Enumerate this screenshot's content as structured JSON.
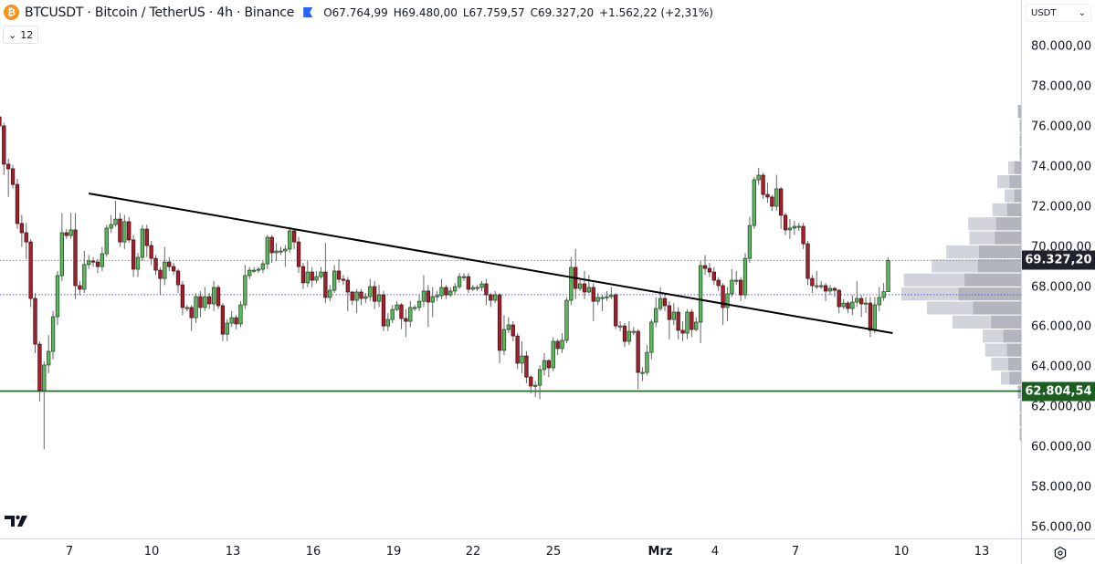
{
  "header": {
    "symbol_title": "BTCUSDT · Bitcoin / TetherUS · 4h · Binance",
    "ohlc": [
      {
        "label": "O",
        "value": "67.764,99"
      },
      {
        "label": "H",
        "value": "69.480,00"
      },
      {
        "label": "L",
        "value": "67.759,57"
      },
      {
        "label": "C",
        "value": "69.327,20"
      }
    ],
    "change": "+1.562,22 (+2,31%)",
    "icons": {
      "symbol": "bitcoin-icon",
      "flag": "flag-icon"
    }
  },
  "indicators_toggle": {
    "icon": "chevron-down-icon",
    "count": "12"
  },
  "currency_selector": {
    "value": "USDT",
    "icon": "chevron-down-icon"
  },
  "price_axis": {
    "ticks": [
      "80.000,00",
      "78.000,00",
      "76.000,00",
      "74.000,00",
      "72.000,00",
      "70.000,00",
      "68.000,00",
      "66.000,00",
      "64.000,00",
      "62.000,00",
      "60.000,00",
      "58.000,00",
      "56.000,00"
    ],
    "current_price_label": "69.327,20",
    "support_label": "62.804,54"
  },
  "time_axis": {
    "ticks": [
      "7",
      "10",
      "13",
      "16",
      "19",
      "22",
      "25",
      "Mrz",
      "4",
      "7",
      "10",
      "13"
    ]
  },
  "colors": {
    "up": "#5cb85c",
    "down": "#a3202c",
    "support_line": "#1b5e20",
    "current_price_bg": "#1e222d",
    "poc_line": "#5b5bd6",
    "trendline": "#000000"
  },
  "chart_data": {
    "type": "candlestick",
    "symbol": "BTCUSDT",
    "interval": "4h",
    "ylim": [
      55500,
      81000
    ],
    "y_tick_values": [
      80000,
      78000,
      76000,
      74000,
      72000,
      70000,
      68000,
      66000,
      64000,
      62000,
      60000,
      58000,
      56000
    ],
    "first_open": 76490,
    "close": [
      76040,
      74130,
      73900,
      73120,
      71170,
      70710,
      70250,
      67430,
      65150,
      62830,
      64110,
      64790,
      66520,
      68570,
      70710,
      70570,
      70850,
      68070,
      67890,
      69120,
      69300,
      69250,
      69020,
      69660,
      70940,
      71120,
      71390,
      70250,
      71260,
      70350,
      68890,
      69480,
      70890,
      70070,
      69430,
      68840,
      68430,
      69250,
      69020,
      68800,
      68110,
      66980,
      66980,
      66470,
      67520,
      66980,
      67520,
      67160,
      67980,
      67070,
      65650,
      66200,
      66470,
      66160,
      67110,
      68570,
      68840,
      68840,
      68890,
      69160,
      70480,
      69710,
      69800,
      69800,
      69890,
      70800,
      70250,
      69020,
      68210,
      68750,
      68340,
      68520,
      68750,
      67480,
      67840,
      68800,
      68390,
      68340,
      67750,
      67340,
      67750,
      67430,
      67520,
      68020,
      67290,
      67610,
      66060,
      66380,
      66880,
      67110,
      66430,
      66290,
      66980,
      66980,
      67290,
      67800,
      67250,
      67520,
      67570,
      67980,
      67610,
      67800,
      68020,
      68520,
      68520,
      67890,
      67980,
      67980,
      68160,
      67610,
      67340,
      67610,
      64840,
      65880,
      66110,
      65560,
      64200,
      64560,
      63510,
      63060,
      63100,
      63880,
      64330,
      63970,
      65290,
      64930,
      65340,
      67340,
      68980,
      67930,
      68160,
      67750,
      67980,
      67290,
      67480,
      67480,
      67520,
      67610,
      66060,
      66060,
      65290,
      65790,
      65790,
      63740,
      63740,
      64740,
      66250,
      66930,
      67430,
      67070,
      66380,
      66750,
      65840,
      65700,
      66750,
      65880,
      66250,
      69070,
      68930,
      68750,
      68340,
      68070,
      66980,
      67660,
      68340,
      68340,
      67610,
      69430,
      71070,
      73350,
      73580,
      72620,
      72490,
      72030,
      72900,
      71580,
      70850,
      70940,
      71030,
      71030,
      70160,
      68430,
      68070,
      68070,
      68070,
      67800,
      67930,
      67840,
      67020,
      67200,
      66930,
      67250,
      67430,
      67160,
      67200,
      65840,
      67110,
      67480,
      67764.99,
      69327.2
    ],
    "high": [
      76600,
      76200,
      74400,
      74100,
      73400,
      71600,
      71200,
      70400,
      67700,
      65300,
      64300,
      65600,
      66800,
      68800,
      71700,
      70900,
      71700,
      71700,
      68300,
      69800,
      69600,
      69500,
      69400,
      70000,
      71100,
      71600,
      72300,
      71700,
      71600,
      71500,
      70600,
      69700,
      71100,
      71100,
      70300,
      69600,
      69000,
      70000,
      69500,
      69200,
      68900,
      68300,
      67100,
      67100,
      67700,
      67800,
      68000,
      67700,
      68300,
      68100,
      67200,
      66400,
      66800,
      66600,
      67300,
      69100,
      69000,
      69000,
      69000,
      69300,
      70600,
      70600,
      70200,
      70000,
      70100,
      71000,
      70900,
      70500,
      69200,
      69300,
      69000,
      68800,
      69000,
      70200,
      68100,
      69100,
      69400,
      68600,
      68500,
      67800,
      67900,
      67900,
      67700,
      68400,
      68300,
      68100,
      67800,
      66700,
      67100,
      67300,
      67200,
      66900,
      67300,
      67100,
      67600,
      68600,
      68100,
      68000,
      67800,
      68400,
      68100,
      68000,
      68200,
      68700,
      68700,
      68700,
      68100,
      68100,
      68300,
      68400,
      67700,
      67800,
      67700,
      66600,
      66500,
      66300,
      65700,
      65300,
      64800,
      63600,
      63300,
      64100,
      64700,
      64400,
      65500,
      65400,
      65700,
      67500,
      69500,
      69900,
      68400,
      68800,
      68600,
      68200,
      67700,
      67600,
      67800,
      68000,
      67700,
      66300,
      66200,
      66300,
      66000,
      65900,
      64000,
      65100,
      66400,
      67500,
      68000,
      67700,
      67300,
      67200,
      67000,
      66300,
      66900,
      66900,
      66500,
      69300,
      69600,
      69200,
      69000,
      68500,
      68200,
      68000,
      68900,
      68800,
      68500,
      69700,
      71500,
      73500,
      73950,
      73700,
      73200,
      72600,
      73600,
      73000,
      71700,
      71400,
      71300,
      71200,
      71200,
      70300,
      68600,
      68800,
      68300,
      68200,
      68100,
      68000,
      67900,
      67400,
      67300,
      67600,
      68300,
      67600,
      67500,
      67500,
      67500,
      68000,
      68200,
      69480
    ],
    "low": [
      75900,
      73600,
      72500,
      72900,
      70900,
      70000,
      69400,
      67000,
      64700,
      62300,
      59900,
      63700,
      64400,
      66100,
      68300,
      70400,
      70400,
      67400,
      67600,
      67700,
      68900,
      69000,
      68700,
      68800,
      69500,
      70700,
      71000,
      70000,
      69900,
      70200,
      68500,
      68500,
      69300,
      69500,
      69100,
      68600,
      67600,
      68100,
      68800,
      68600,
      67700,
      66600,
      66800,
      65800,
      66200,
      66500,
      66800,
      66900,
      66800,
      66900,
      65300,
      65300,
      66000,
      65900,
      66000,
      66900,
      68400,
      68700,
      68700,
      68700,
      68900,
      69200,
      69300,
      69600,
      69000,
      69700,
      69900,
      68700,
      67900,
      68000,
      68000,
      68200,
      68400,
      67200,
      67300,
      67700,
      68200,
      68100,
      66800,
      67100,
      66700,
      67100,
      67200,
      67300,
      66900,
      67000,
      65800,
      65800,
      66200,
      66800,
      65900,
      65500,
      66000,
      66800,
      66800,
      67000,
      66000,
      66500,
      67300,
      67400,
      67400,
      67500,
      67600,
      67900,
      68300,
      67700,
      67800,
      67800,
      67800,
      67100,
      67000,
      67200,
      64200,
      64600,
      65700,
      65300,
      63900,
      63700,
      63200,
      62700,
      62500,
      62400,
      63600,
      63500,
      63800,
      64600,
      64700,
      65200,
      67100,
      67400,
      67800,
      67400,
      67700,
      66300,
      67100,
      66800,
      67300,
      67400,
      65900,
      65800,
      65000,
      65100,
      65600,
      62900,
      63300,
      63600,
      64400,
      66000,
      66800,
      66800,
      65400,
      66100,
      65400,
      65300,
      65400,
      65500,
      65800,
      65200,
      68600,
      68500,
      68100,
      67800,
      66100,
      66300,
      67500,
      68100,
      67300,
      67400,
      69200,
      70900,
      73100,
      72400,
      72200,
      71800,
      71800,
      70900,
      70600,
      70400,
      70600,
      70800,
      69900,
      68100,
      67700,
      67900,
      67900,
      67300,
      67600,
      67500,
      66700,
      66900,
      66700,
      66600,
      67000,
      66500,
      66700,
      65500,
      65700,
      66800,
      67300,
      67759.57
    ],
    "trendline": {
      "start": {
        "candle": 20,
        "price": 72670
      },
      "end": {
        "candle": 200,
        "price": 65700
      }
    },
    "support_level": 62804.54,
    "current_price": 69327.2,
    "poc_level": 67620,
    "volume_profile": {
      "price_top": 77100,
      "price_bottom": 60300,
      "rows_total_pct": [
        4,
        2.5,
        2.5,
        2.5,
        12,
        21,
        15,
        25,
        45,
        44,
        63,
        75,
        98,
        100,
        79,
        58,
        33,
        31,
        26,
        18,
        4,
        2.5,
        2.5,
        2.5
      ],
      "rows_dark_pct": [
        4,
        2.5,
        2.5,
        2.5,
        7,
        11,
        7,
        13,
        22,
        23,
        36,
        37,
        48,
        53,
        41,
        26,
        16,
        13,
        12,
        11,
        4,
        2.5,
        2.5,
        2.5
      ]
    }
  }
}
